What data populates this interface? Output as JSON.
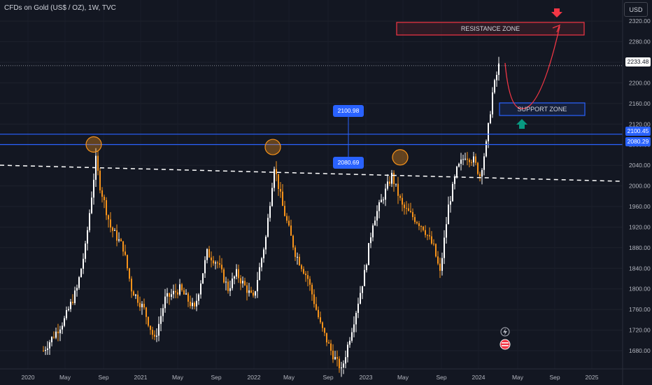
{
  "header": {
    "title": "CFDs on Gold (US$ / OZ), 1W, TVC"
  },
  "currency_button": {
    "label": "USD"
  },
  "annotations": {
    "resistance_zone": "RESISTANCE ZONE",
    "support_zone": "SUPPORT ZONE",
    "callout_upper": "2100.98",
    "callout_lower": "2080.69"
  },
  "price_tags": {
    "current": "2233.48",
    "level_1": "2100.45",
    "level_2": "2080.29"
  },
  "colors": {
    "background": "#131722",
    "bull_candle": "#ffffff",
    "bear_candle": "#f7931a",
    "level_line": "#2962ff",
    "resistance": "#f23645",
    "support": "#2962ff",
    "arrow_down": "#f23645",
    "arrow_up": "#089981",
    "trendline": "#ffffff",
    "highlight_circle": "#f7931a"
  },
  "chart_data": {
    "type": "candlestick",
    "symbol": "CFDs on Gold (US$ / OZ)",
    "interval": "1W",
    "ylim": [
      1675,
      2340
    ],
    "y_ticks": [
      1680,
      1720,
      1760,
      1800,
      1840,
      1880,
      1920,
      1960,
      2000,
      2040,
      2080,
      2120,
      2160,
      2200,
      2240,
      2280,
      2320
    ],
    "x_ticks": [
      "2020",
      "May",
      "Sep",
      "2021",
      "May",
      "Sep",
      "2022",
      "May",
      "Sep",
      "2023",
      "May",
      "Sep",
      "2024",
      "May",
      "Sep",
      "2025"
    ],
    "levels": [
      2100.45,
      2080.29
    ],
    "current_price": 2233.48,
    "resistance_zone": [
      2285,
      2310
    ],
    "support_zone": [
      2135,
      2160
    ],
    "highlighted_highs": [
      2075,
      2070,
      2050
    ],
    "swing_anchors": [
      [
        0,
        1680
      ],
      [
        10,
        1740
      ],
      [
        16,
        1800
      ],
      [
        20,
        1880
      ],
      [
        25,
        2050
      ],
      [
        27,
        2000
      ],
      [
        32,
        1920
      ],
      [
        38,
        1880
      ],
      [
        42,
        1800
      ],
      [
        48,
        1760
      ],
      [
        53,
        1700
      ],
      [
        58,
        1780
      ],
      [
        65,
        1800
      ],
      [
        72,
        1760
      ],
      [
        78,
        1870
      ],
      [
        83,
        1850
      ],
      [
        88,
        1800
      ],
      [
        92,
        1830
      ],
      [
        100,
        1780
      ],
      [
        106,
        1900
      ],
      [
        110,
        2040
      ],
      [
        114,
        1960
      ],
      [
        120,
        1870
      ],
      [
        126,
        1820
      ],
      [
        132,
        1730
      ],
      [
        137,
        1680
      ],
      [
        142,
        1640
      ],
      [
        148,
        1740
      ],
      [
        153,
        1830
      ],
      [
        157,
        1930
      ],
      [
        162,
        1980
      ],
      [
        166,
        2020
      ],
      [
        171,
        1960
      ],
      [
        176,
        1940
      ],
      [
        181,
        1920
      ],
      [
        186,
        1880
      ],
      [
        189,
        1830
      ],
      [
        193,
        1960
      ],
      [
        197,
        2030
      ],
      [
        201,
        2060
      ],
      [
        205,
        2050
      ],
      [
        208,
        2020
      ],
      [
        211,
        2080
      ],
      [
        214,
        2180
      ],
      [
        217,
        2233
      ]
    ]
  }
}
